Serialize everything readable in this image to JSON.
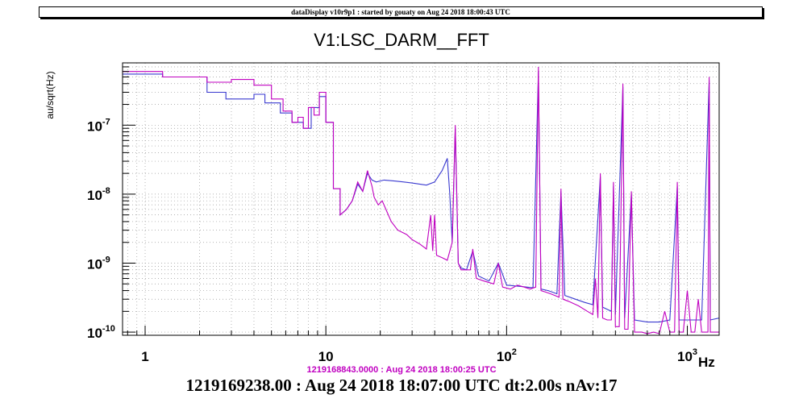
{
  "header": {
    "text": "dataDisplay v10r9p1 : started by gouaty on Aug 24 2018 18:00:43 UTC"
  },
  "chart_data": {
    "type": "line",
    "title": "V1:LSC_DARM__FFT",
    "ylabel": "au/sqrt(Hz)",
    "xlabel": "Hz",
    "x_scale": "log",
    "y_scale": "log",
    "xlim": [
      0.75,
      1500
    ],
    "ylim": [
      9e-11,
      8e-07
    ],
    "grid": true,
    "x_ticks": [
      {
        "value": 1,
        "base": "1",
        "exp": ""
      },
      {
        "value": 10,
        "base": "10",
        "exp": ""
      },
      {
        "value": 100,
        "base": "10",
        "exp": "2"
      },
      {
        "value": 1000,
        "base": "10",
        "exp": "3"
      }
    ],
    "y_ticks": [
      {
        "value": 1e-10,
        "base": "10",
        "exp": "-10"
      },
      {
        "value": 1e-09,
        "base": "10",
        "exp": "-9"
      },
      {
        "value": 1e-08,
        "base": "10",
        "exp": "-8"
      },
      {
        "value": 1e-07,
        "base": "10",
        "exp": "-7"
      }
    ],
    "series": [
      {
        "name": "1219168843.0000 : Aug 24 2018 18:00:25 UTC",
        "color": "#c000c0",
        "points": [
          [
            0.75,
            6e-07
          ],
          [
            1.25,
            6e-07
          ],
          [
            1.25,
            5e-07
          ],
          [
            2.2,
            5e-07
          ],
          [
            2.2,
            4.2e-07
          ],
          [
            3.0,
            4.2e-07
          ],
          [
            3.0,
            4.6e-07
          ],
          [
            4.0,
            4.6e-07
          ],
          [
            4.0,
            3.8e-07
          ],
          [
            5.0,
            3.8e-07
          ],
          [
            5.0,
            2.4e-07
          ],
          [
            5.8,
            2.4e-07
          ],
          [
            5.8,
            1.6e-07
          ],
          [
            6.5,
            1.6e-07
          ],
          [
            6.5,
            1.1e-07
          ],
          [
            7.0,
            1.1e-07
          ],
          [
            7.0,
            1.3e-07
          ],
          [
            7.5,
            1.3e-07
          ],
          [
            7.5,
            9e-08
          ],
          [
            8.0,
            9e-08
          ],
          [
            8.0,
            1.8e-07
          ],
          [
            8.6,
            1.8e-07
          ],
          [
            8.6,
            1.4e-07
          ],
          [
            9.2,
            1.4e-07
          ],
          [
            9.2,
            3e-07
          ],
          [
            10.0,
            3e-07
          ],
          [
            10.0,
            1.1e-07
          ],
          [
            11.0,
            1.1e-07
          ],
          [
            11.0,
            1.2e-08
          ],
          [
            12.0,
            1.2e-08
          ],
          [
            12.0,
            5e-09
          ],
          [
            13.0,
            6e-09
          ],
          [
            14.0,
            8e-09
          ],
          [
            15.0,
            1.5e-08
          ],
          [
            16.0,
            1.1e-08
          ],
          [
            17.0,
            2.2e-08
          ],
          [
            18.0,
            1.3e-08
          ],
          [
            18.5,
            9e-09
          ],
          [
            19.5,
            7e-09
          ],
          [
            20.5,
            8e-09
          ],
          [
            21.5,
            6e-09
          ],
          [
            23.0,
            4e-09
          ],
          [
            25.0,
            3e-09
          ],
          [
            28.0,
            2.6e-09
          ],
          [
            30.0,
            2.2e-09
          ],
          [
            33.0,
            1.9e-09
          ],
          [
            36.0,
            1.6e-09
          ],
          [
            38.0,
            5e-09
          ],
          [
            39.0,
            1.5e-09
          ],
          [
            40.0,
            5e-09
          ],
          [
            41.0,
            1.3e-09
          ],
          [
            44.0,
            1.2e-09
          ],
          [
            47.0,
            1.1e-09
          ],
          [
            50.0,
            2e-09
          ],
          [
            52.0,
            1e-07
          ],
          [
            54.0,
            1e-09
          ],
          [
            56.0,
            8e-10
          ],
          [
            60.0,
            8e-10
          ],
          [
            63.0,
            8e-10
          ],
          [
            65.0,
            1.6e-09
          ],
          [
            68.0,
            6e-10
          ],
          [
            75.0,
            5.5e-10
          ],
          [
            85.0,
            5e-10
          ],
          [
            90.0,
            1e-09
          ],
          [
            95.0,
            4.5e-10
          ],
          [
            105.0,
            4.2e-10
          ],
          [
            115.0,
            4.8e-10
          ],
          [
            125.0,
            4.5e-10
          ],
          [
            135.0,
            4.2e-10
          ],
          [
            145.0,
            4.5e-10
          ],
          [
            150.0,
            7e-07
          ],
          [
            155.0,
            4e-10
          ],
          [
            165.0,
            3.8e-10
          ],
          [
            175.0,
            3.6e-10
          ],
          [
            185.0,
            3.4e-10
          ],
          [
            195.0,
            3.2e-10
          ],
          [
            200.0,
            1.2e-08
          ],
          [
            205.0,
            3e-10
          ],
          [
            220.0,
            2.8e-10
          ],
          [
            250.0,
            2.4e-10
          ],
          [
            280.0,
            2e-10
          ],
          [
            300.0,
            1.8e-10
          ],
          [
            310.0,
            6e-10
          ],
          [
            320.0,
            1.6e-10
          ],
          [
            330.0,
            2e-08
          ],
          [
            340.0,
            1.6e-10
          ],
          [
            360.0,
            1.5e-10
          ],
          [
            380.0,
            1.5e-10
          ],
          [
            390.0,
            1.5e-08
          ],
          [
            400.0,
            1.2e-10
          ],
          [
            420.0,
            1.2e-10
          ],
          [
            440.0,
            4e-07
          ],
          [
            450.0,
            1.1e-10
          ],
          [
            470.0,
            1.1e-10
          ],
          [
            490.0,
            1.1e-08
          ],
          [
            510.0,
            1e-10
          ],
          [
            560.0,
            1e-10
          ],
          [
            600.0,
            9.5e-11
          ],
          [
            650.0,
            1e-10
          ],
          [
            700.0,
            9.5e-11
          ],
          [
            750.0,
            2e-10
          ],
          [
            800.0,
            1e-10
          ],
          [
            850.0,
            1e-10
          ],
          [
            880.0,
            1.5e-08
          ],
          [
            900.0,
            1e-10
          ],
          [
            950.0,
            1e-10
          ],
          [
            1000.0,
            4e-10
          ],
          [
            1050.0,
            1e-10
          ],
          [
            1100.0,
            1e-10
          ],
          [
            1150.0,
            3e-10
          ],
          [
            1200.0,
            1e-10
          ],
          [
            1300.0,
            1e-10
          ],
          [
            1320.0,
            5e-07
          ],
          [
            1340.0,
            1e-10
          ],
          [
            1400.0,
            1e-10
          ],
          [
            1500.0,
            1e-10
          ]
        ]
      },
      {
        "name": "1219169238.00 : Aug 24 2018 18:07:00 UTC",
        "color": "#3a3ad0",
        "points": [
          [
            0.75,
            5.5e-07
          ],
          [
            1.25,
            5.5e-07
          ],
          [
            1.25,
            5e-07
          ],
          [
            2.2,
            5e-07
          ],
          [
            2.2,
            3e-07
          ],
          [
            2.8,
            3e-07
          ],
          [
            2.8,
            2.4e-07
          ],
          [
            4.0,
            2.4e-07
          ],
          [
            4.0,
            2.8e-07
          ],
          [
            4.6,
            2.8e-07
          ],
          [
            4.6,
            2.1e-07
          ],
          [
            5.6,
            2.1e-07
          ],
          [
            5.6,
            1.5e-07
          ],
          [
            6.5,
            1.5e-07
          ],
          [
            6.5,
            1.1e-07
          ],
          [
            7.5,
            1.1e-07
          ],
          [
            7.5,
            9e-08
          ],
          [
            8.3,
            9e-08
          ],
          [
            8.3,
            1.8e-07
          ],
          [
            9.2,
            1.8e-07
          ],
          [
            9.2,
            2.6e-07
          ],
          [
            10.0,
            2.6e-07
          ],
          [
            10.0,
            1.1e-07
          ],
          [
            11.0,
            1.1e-07
          ],
          [
            11.0,
            1.2e-08
          ],
          [
            12.0,
            1.2e-08
          ],
          [
            12.0,
            5e-09
          ],
          [
            13.0,
            6e-09
          ],
          [
            14.0,
            8e-09
          ],
          [
            15.0,
            1.4e-08
          ],
          [
            16.0,
            1.1e-08
          ],
          [
            17.0,
            2e-08
          ],
          [
            18.0,
            1.6e-08
          ],
          [
            19.0,
            1.5e-08
          ],
          [
            21.0,
            1.6e-08
          ],
          [
            24.0,
            1.55e-08
          ],
          [
            27.0,
            1.5e-08
          ],
          [
            30.0,
            1.45e-08
          ],
          [
            33.0,
            1.4e-08
          ],
          [
            36.0,
            1.35e-08
          ],
          [
            40.0,
            1.5e-08
          ],
          [
            44.0,
            2.2e-08
          ],
          [
            47.0,
            3.3e-08
          ],
          [
            48.5,
            1e-08
          ],
          [
            50.0,
            2e-09
          ],
          [
            52.0,
            9e-08
          ],
          [
            54.0,
            1e-09
          ],
          [
            56.0,
            8.5e-10
          ],
          [
            60.0,
            8e-10
          ],
          [
            65.0,
            1.5e-09
          ],
          [
            70.0,
            6.5e-10
          ],
          [
            80.0,
            5.5e-10
          ],
          [
            90.0,
            1e-09
          ],
          [
            100.0,
            4.8e-10
          ],
          [
            120.0,
            4.6e-10
          ],
          [
            140.0,
            4.4e-10
          ],
          [
            150.0,
            6e-07
          ],
          [
            155.0,
            4.2e-10
          ],
          [
            170.0,
            4e-10
          ],
          [
            190.0,
            3.6e-10
          ],
          [
            200.0,
            1.1e-08
          ],
          [
            210.0,
            3.4e-10
          ],
          [
            240.0,
            3e-10
          ],
          [
            270.0,
            2.7e-10
          ],
          [
            300.0,
            2.5e-10
          ],
          [
            330.0,
            1.8e-08
          ],
          [
            340.0,
            2.3e-10
          ],
          [
            380.0,
            2e-10
          ],
          [
            390.0,
            1.3e-08
          ],
          [
            400.0,
            1.8e-10
          ],
          [
            440.0,
            3.6e-07
          ],
          [
            450.0,
            1.6e-10
          ],
          [
            490.0,
            1e-08
          ],
          [
            510.0,
            1.5e-10
          ],
          [
            600.0,
            1.4e-10
          ],
          [
            700.0,
            1.4e-10
          ],
          [
            800.0,
            1.5e-10
          ],
          [
            880.0,
            1.3e-08
          ],
          [
            900.0,
            1.5e-10
          ],
          [
            1000.0,
            1.5e-10
          ],
          [
            1200.0,
            1.5e-10
          ],
          [
            1320.0,
            4.5e-07
          ],
          [
            1340.0,
            1.5e-10
          ],
          [
            1500.0,
            1.6e-10
          ]
        ]
      }
    ]
  },
  "reference_label": "1219168843.0000 : Aug 24 2018 18:00:25 UTC",
  "footer": "1219169238.00 : Aug 24 2018 18:07:00 UTC dt:2.00s nAv:17"
}
